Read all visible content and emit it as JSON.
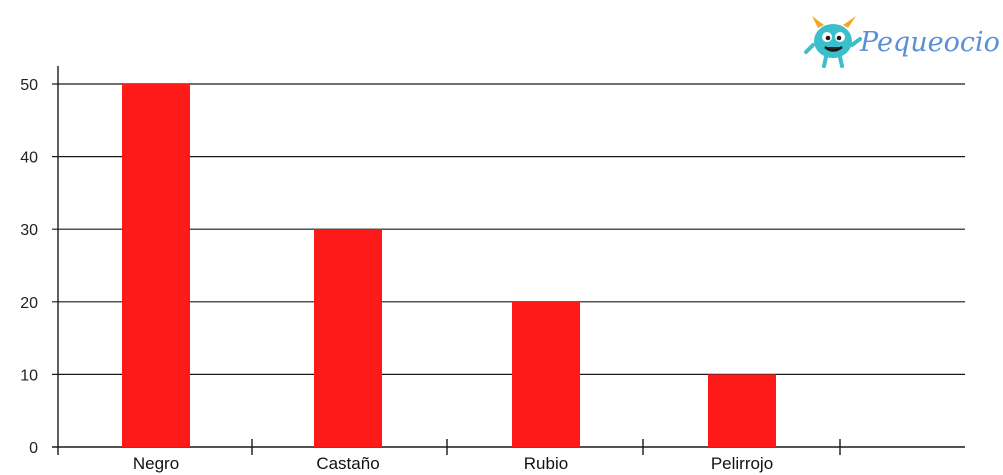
{
  "logo": {
    "text": "Pequeocio"
  },
  "colors": {
    "bar": "#FF1A1A",
    "gridline": "#1a1a1a",
    "axis": "#1a1a1a",
    "logo_text": "#5B8FD6",
    "logo_mascot": "#3BBFCB"
  },
  "chart_data": {
    "type": "bar",
    "categories": [
      "Negro",
      "Castaño",
      "Rubio",
      "Pelirrojo"
    ],
    "values": [
      50,
      30,
      20,
      10
    ],
    "title": "",
    "xlabel": "",
    "ylabel": "",
    "ylim": [
      0,
      50
    ],
    "yticks": [
      0,
      10,
      20,
      30,
      40,
      50
    ],
    "grid": true,
    "legend": "none"
  }
}
